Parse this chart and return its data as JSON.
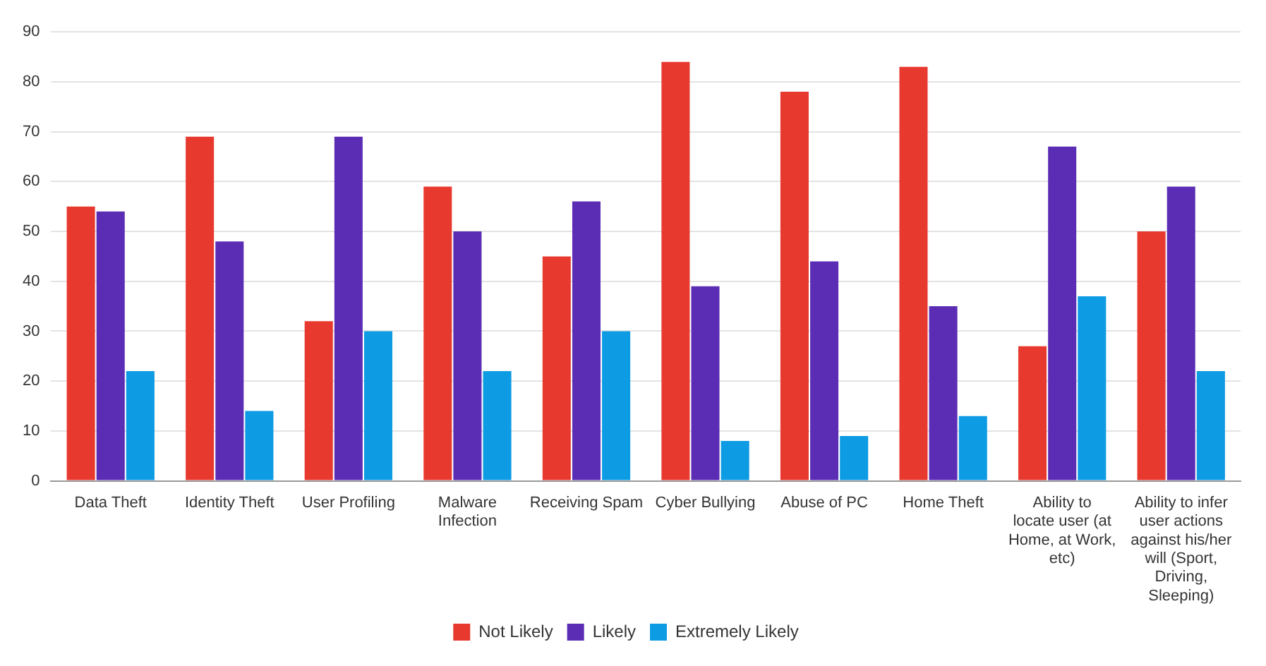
{
  "chart_data": {
    "type": "bar",
    "categories": [
      "Data Theft",
      "Identity Theft",
      "User Profiling",
      "Malware Infection",
      "Receiving Spam",
      "Cyber Bullying",
      "Abuse of PC",
      "Home Theft",
      "Ability to locate user (at Home, at Work, etc)",
      "Ability to infer user actions against his/her will (Sport, Driving, Sleeping)"
    ],
    "series": [
      {
        "name": "Not Likely",
        "color": "#e8392f",
        "values": [
          55,
          69,
          32,
          59,
          45,
          84,
          78,
          83,
          27,
          50
        ]
      },
      {
        "name": "Likely",
        "color": "#5b2db5",
        "values": [
          54,
          48,
          69,
          50,
          56,
          39,
          44,
          35,
          67,
          59
        ]
      },
      {
        "name": "Extremely Likely",
        "color": "#0d9be3",
        "values": [
          22,
          14,
          30,
          22,
          30,
          8,
          9,
          13,
          37,
          22
        ]
      }
    ],
    "ylim": [
      0,
      90
    ],
    "yticks": [
      0,
      10,
      20,
      30,
      40,
      50,
      60,
      70,
      80,
      90
    ],
    "grid": "y",
    "legend": "bottom"
  }
}
